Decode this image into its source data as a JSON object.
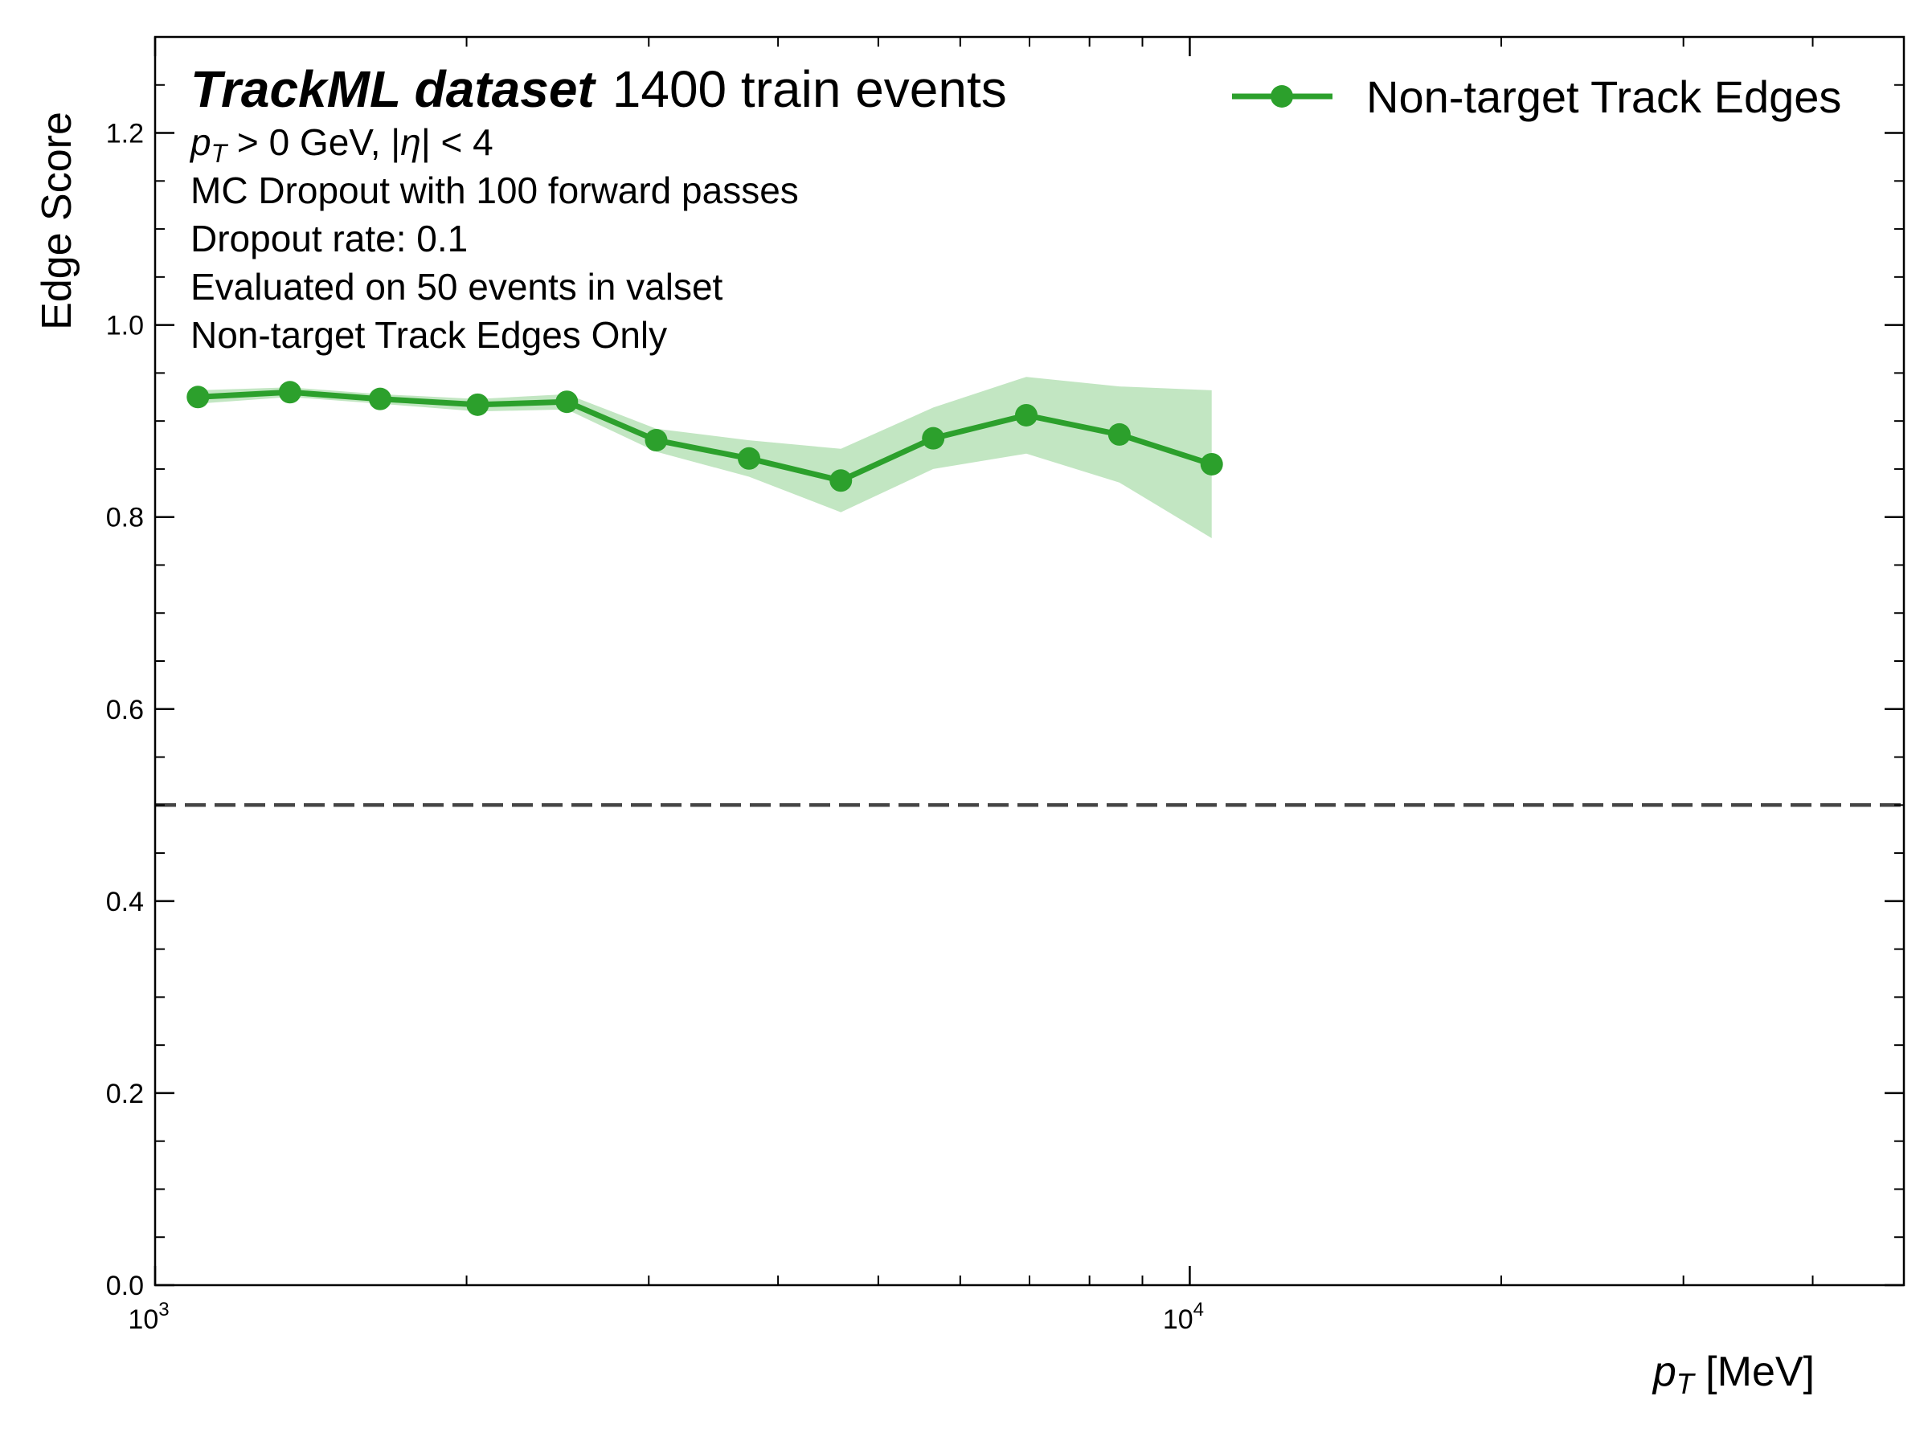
{
  "chart_data": {
    "type": "line",
    "title_bold": "TrackML dataset",
    "title_rest": "1400 train events",
    "annotations": {
      "cut": {
        "p": "p",
        "sub": "T",
        "rest": " > 0 GeV, |",
        "eta": "η",
        "end": "| < 4"
      },
      "lines": [
        "MC Dropout with 100 forward passes",
        "Dropout rate: 0.1",
        "Evaluated on 50 events in valset",
        "Non-target Track Edges Only"
      ]
    },
    "xlabel": {
      "p": "p",
      "sub": "T",
      "rest": " [MeV]"
    },
    "ylabel": "Edge Score",
    "xscale": "log",
    "xlim": [
      1000,
      49000
    ],
    "ylim": [
      0.0,
      1.3
    ],
    "yticks": [
      0.0,
      0.2,
      0.4,
      0.6,
      0.8,
      1.0,
      1.2
    ],
    "yticklabels": [
      "0.0",
      "0.2",
      "0.4",
      "0.6",
      "0.8",
      "1.0",
      "1.2"
    ],
    "xticks_major": [
      {
        "base": "10",
        "exp": "3",
        "value": 1000
      },
      {
        "base": "10",
        "exp": "4",
        "value": 10000
      }
    ],
    "reference_line": {
      "y": 0.5,
      "style": "dashed",
      "color": "#444444"
    },
    "legend_position": "top-right",
    "series": [
      {
        "name": "Non-target Track Edges",
        "color": "#2ca02c",
        "band_color": "#a8dba8",
        "x": [
          1100,
          1350,
          1650,
          2050,
          2500,
          3050,
          3750,
          4600,
          5650,
          6950,
          8550,
          10500
        ],
        "y": [
          0.925,
          0.93,
          0.923,
          0.917,
          0.92,
          0.88,
          0.861,
          0.838,
          0.882,
          0.906,
          0.886,
          0.855
        ],
        "y_low": [
          0.918,
          0.925,
          0.918,
          0.91,
          0.912,
          0.868,
          0.842,
          0.805,
          0.85,
          0.866,
          0.836,
          0.778
        ],
        "y_high": [
          0.932,
          0.935,
          0.928,
          0.923,
          0.928,
          0.892,
          0.88,
          0.871,
          0.914,
          0.946,
          0.936,
          0.932
        ]
      }
    ]
  }
}
